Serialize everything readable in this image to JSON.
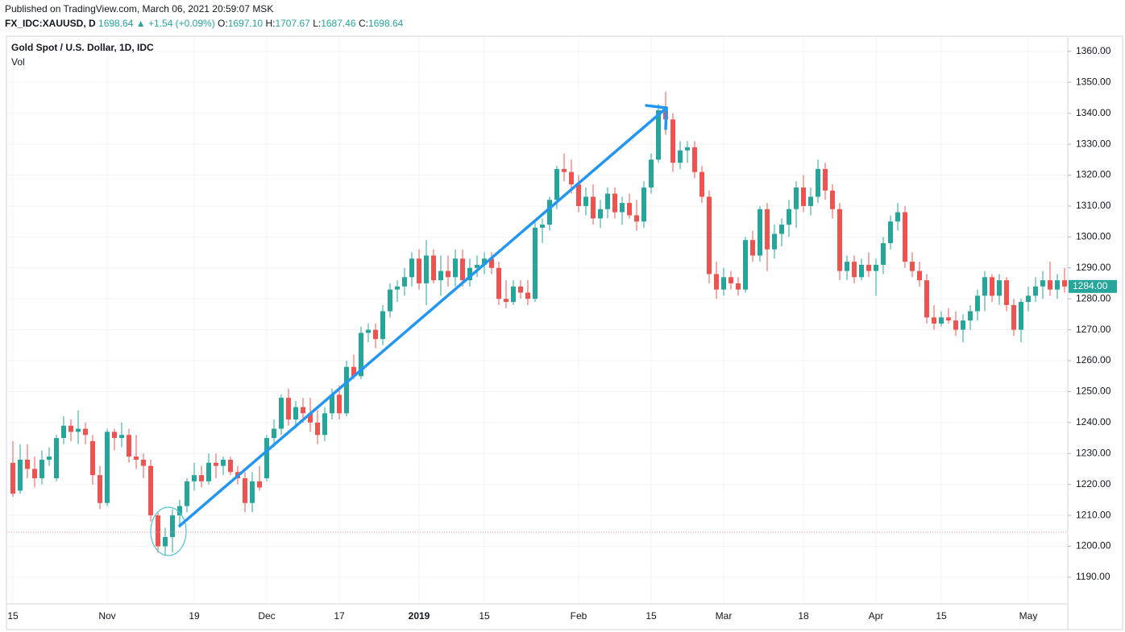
{
  "header": {
    "published": "Published on TradingView.com, March 06, 2021 20:59:07 MSK",
    "symbol": "FX_IDC:XAUUSD, D",
    "last": "1698.64",
    "change": "▲ +1.54 (+0.09%)",
    "ohlc": [
      {
        "label": "O:",
        "value": "1697.10"
      },
      {
        "label": "H:",
        "value": "1707.67"
      },
      {
        "label": "L:",
        "value": "1687.46"
      },
      {
        "label": "C:",
        "value": "1698.64"
      }
    ]
  },
  "chart_data": {
    "type": "candlestick",
    "title": "Gold Spot / U.S. Dollar, 1D, IDC",
    "subtitle": "Vol",
    "up_color": "#26a69a",
    "down_color": "#ef5350",
    "grid": true,
    "last_price": {
      "value": 1284,
      "label": "1284.00"
    },
    "ylim": [
      1181.4,
      1364.9
    ],
    "yticks": [
      {
        "value": 1190,
        "label": "1190.00"
      },
      {
        "value": 1200,
        "label": "1200.00"
      },
      {
        "value": 1210,
        "label": "1210.00"
      },
      {
        "value": 1220,
        "label": "1220.00"
      },
      {
        "value": 1230,
        "label": "1230.00"
      },
      {
        "value": 1240,
        "label": "1240.00"
      },
      {
        "value": 1250,
        "label": "1250.00"
      },
      {
        "value": 1260,
        "label": "1260.00"
      },
      {
        "value": 1270,
        "label": "1270.00"
      },
      {
        "value": 1280,
        "label": "1280.00"
      },
      {
        "value": 1290,
        "label": "1290.00"
      },
      {
        "value": 1300,
        "label": "1300.00"
      },
      {
        "value": 1310,
        "label": "1310.00"
      },
      {
        "value": 1320,
        "label": "1320.00"
      },
      {
        "value": 1330,
        "label": "1330.00"
      },
      {
        "value": 1340,
        "label": "1340.00"
      },
      {
        "value": 1350,
        "label": "1350.00"
      },
      {
        "value": 1360,
        "label": "1360.00"
      }
    ],
    "categories": [
      "15",
      null,
      null,
      null,
      null,
      null,
      null,
      null,
      null,
      null,
      null,
      null,
      null,
      "Nov",
      null,
      null,
      null,
      null,
      null,
      null,
      null,
      null,
      null,
      null,
      null,
      "19",
      null,
      null,
      null,
      null,
      null,
      null,
      null,
      null,
      null,
      "Dec",
      null,
      null,
      null,
      null,
      null,
      null,
      null,
      null,
      null,
      "17",
      null,
      null,
      null,
      null,
      null,
      null,
      null,
      null,
      null,
      null,
      "2019",
      null,
      null,
      null,
      null,
      null,
      null,
      null,
      null,
      "15",
      null,
      null,
      null,
      null,
      null,
      null,
      null,
      null,
      null,
      null,
      null,
      null,
      "Feb",
      null,
      null,
      null,
      null,
      null,
      null,
      null,
      null,
      null,
      "15",
      null,
      null,
      null,
      null,
      null,
      null,
      null,
      null,
      null,
      "Mar",
      null,
      null,
      null,
      null,
      null,
      null,
      null,
      null,
      null,
      null,
      "18",
      null,
      null,
      null,
      null,
      null,
      null,
      null,
      null,
      null,
      "Apr",
      null,
      null,
      null,
      null,
      null,
      null,
      null,
      null,
      "15",
      null,
      null,
      null,
      null,
      null,
      null,
      null,
      null,
      null,
      null,
      null,
      "May",
      null,
      null,
      null,
      null,
      null
    ],
    "open": [
      1227,
      1218,
      1228,
      1225,
      1222,
      1228,
      1222,
      1235,
      1239,
      1237,
      1238,
      1234,
      1223,
      1214,
      1237,
      1235,
      1236,
      1229,
      1228,
      1226,
      1210,
      1200,
      1203,
      1210,
      1213,
      1221,
      1223,
      1221,
      1227,
      1226,
      1228,
      1224,
      1222,
      1214,
      1221,
      1222,
      1235,
      1238,
      1248,
      1241,
      1245,
      1243,
      1240,
      1236,
      1243,
      1249,
      1243,
      1258,
      1255,
      1269,
      1270,
      1267,
      1276,
      1283,
      1284,
      1287,
      1293,
      1285,
      1294,
      1286,
      1289,
      1287,
      1293,
      1286,
      1290,
      1291,
      1293,
      1290,
      1280,
      1279,
      1284,
      1282,
      1280,
      1303,
      1304,
      1312,
      1322,
      1321,
      1317,
      1310,
      1313,
      1306,
      1309,
      1314,
      1308,
      1311,
      1307,
      1305,
      1316,
      1325,
      1341,
      1338,
      1324,
      1328,
      1329,
      1321,
      1313,
      1288,
      1283,
      1287,
      1285,
      1283,
      1299,
      1294,
      1309,
      1296,
      1301,
      1304,
      1309,
      1316,
      1310,
      1313,
      1322,
      1315,
      1309,
      1289,
      1292,
      1287,
      1291,
      1289,
      1291,
      1298,
      1305,
      1308,
      1292,
      1289,
      1286,
      1274,
      1272,
      1274,
      1273,
      1270,
      1273,
      1276,
      1281,
      1287,
      1281,
      1286,
      1278,
      1270,
      1279,
      1281,
      1284,
      1286,
      1283,
      1286
    ],
    "high": [
      1234,
      1233,
      1233,
      1229,
      1231,
      1232,
      1236,
      1242,
      1241,
      1244,
      1240,
      1236,
      1226,
      1238,
      1238,
      1240,
      1238,
      1236,
      1230,
      1228,
      1211,
      1206,
      1212,
      1215,
      1222,
      1227,
      1226,
      1230,
      1230,
      1229,
      1229,
      1226,
      1224,
      1224,
      1226,
      1236,
      1241,
      1249,
      1251,
      1247,
      1248,
      1248,
      1244,
      1245,
      1251,
      1252,
      1260,
      1262,
      1271,
      1272,
      1272,
      1278,
      1285,
      1286,
      1290,
      1295,
      1296,
      1299,
      1296,
      1294,
      1294,
      1296,
      1296,
      1293,
      1294,
      1295,
      1295,
      1292,
      1286,
      1286,
      1286,
      1286,
      1305,
      1306,
      1313,
      1323,
      1327,
      1325,
      1320,
      1316,
      1317,
      1312,
      1316,
      1316,
      1313,
      1314,
      1312,
      1318,
      1327,
      1343,
      1347,
      1340,
      1331,
      1331,
      1331,
      1323,
      1315,
      1292,
      1290,
      1289,
      1287,
      1300,
      1302,
      1310,
      1311,
      1304,
      1306,
      1312,
      1318,
      1320,
      1316,
      1325,
      1324,
      1317,
      1311,
      1294,
      1294,
      1293,
      1295,
      1293,
      1300,
      1307,
      1311,
      1310,
      1295,
      1292,
      1288,
      1278,
      1276,
      1277,
      1276,
      1275,
      1278,
      1283,
      1289,
      1288,
      1288,
      1287,
      1280,
      1280,
      1284,
      1287,
      1289,
      1292,
      1288,
      1290
    ],
    "low": [
      1216,
      1217,
      1222,
      1219,
      1220,
      1226,
      1221,
      1233,
      1234,
      1233,
      1233,
      1220,
      1212,
      1213,
      1231,
      1232,
      1227,
      1225,
      1222,
      1208,
      1198,
      1197,
      1198,
      1206,
      1211,
      1218,
      1219,
      1220,
      1222,
      1223,
      1223,
      1220,
      1211,
      1211,
      1218,
      1221,
      1232,
      1236,
      1239,
      1238,
      1240,
      1237,
      1233,
      1234,
      1241,
      1241,
      1242,
      1254,
      1254,
      1266,
      1264,
      1265,
      1274,
      1279,
      1281,
      1284,
      1283,
      1278,
      1285,
      1281,
      1284,
      1284,
      1284,
      1284,
      1287,
      1288,
      1288,
      1278,
      1277,
      1278,
      1280,
      1278,
      1279,
      1298,
      1302,
      1309,
      1318,
      1314,
      1308,
      1307,
      1304,
      1303,
      1306,
      1306,
      1304,
      1306,
      1302,
      1303,
      1314,
      1324,
      1333,
      1321,
      1322,
      1324,
      1319,
      1311,
      1285,
      1280,
      1281,
      1283,
      1281,
      1282,
      1292,
      1292,
      1289,
      1293,
      1297,
      1300,
      1303,
      1308,
      1307,
      1311,
      1312,
      1306,
      1286,
      1286,
      1285,
      1286,
      1287,
      1281,
      1288,
      1296,
      1302,
      1290,
      1287,
      1284,
      1272,
      1270,
      1271,
      1272,
      1268,
      1266,
      1270,
      1273,
      1276,
      1279,
      1278,
      1276,
      1268,
      1266,
      1276,
      1279,
      1280,
      1281,
      1280,
      1282
    ],
    "close": [
      1217,
      1228,
      1225,
      1222,
      1228,
      1229,
      1235,
      1239,
      1237,
      1238,
      1236,
      1223,
      1214,
      1237,
      1235,
      1236,
      1229,
      1228,
      1226,
      1210,
      1200,
      1203,
      1210,
      1213,
      1221,
      1223,
      1221,
      1227,
      1226,
      1228,
      1224,
      1222,
      1214,
      1221,
      1219,
      1235,
      1238,
      1248,
      1241,
      1245,
      1243,
      1240,
      1236,
      1243,
      1249,
      1243,
      1258,
      1255,
      1269,
      1270,
      1267,
      1276,
      1283,
      1284,
      1287,
      1293,
      1285,
      1294,
      1286,
      1289,
      1287,
      1293,
      1286,
      1290,
      1291,
      1293,
      1290,
      1280,
      1279,
      1284,
      1282,
      1280,
      1303,
      1304,
      1312,
      1322,
      1321,
      1317,
      1310,
      1313,
      1306,
      1309,
      1314,
      1308,
      1311,
      1307,
      1305,
      1316,
      1325,
      1341,
      1338,
      1324,
      1328,
      1329,
      1321,
      1313,
      1288,
      1283,
      1287,
      1285,
      1283,
      1299,
      1294,
      1309,
      1296,
      1301,
      1304,
      1309,
      1316,
      1310,
      1313,
      1322,
      1315,
      1309,
      1289,
      1292,
      1287,
      1291,
      1289,
      1291,
      1298,
      1305,
      1308,
      1292,
      1289,
      1286,
      1274,
      1272,
      1274,
      1273,
      1270,
      1273,
      1276,
      1281,
      1287,
      1281,
      1286,
      1278,
      1270,
      1279,
      1281,
      1284,
      1286,
      1283,
      1286,
      1284
    ]
  }
}
